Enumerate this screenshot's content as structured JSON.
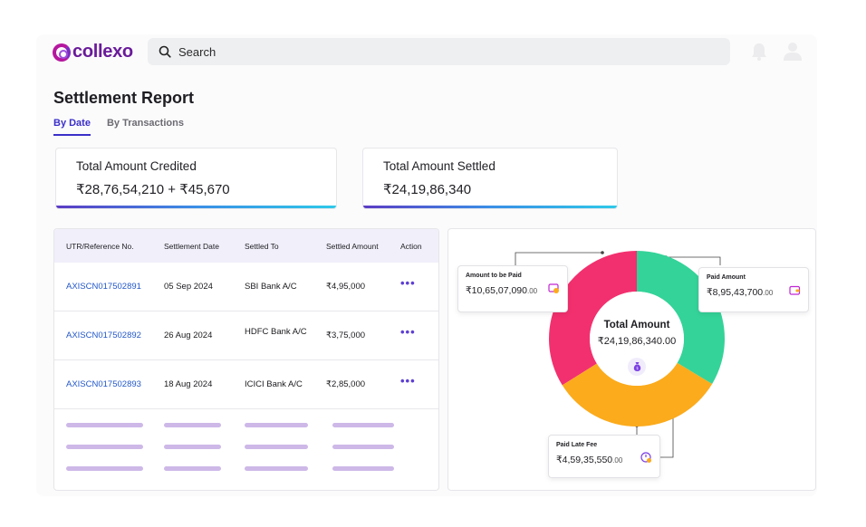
{
  "app": {
    "logo_text": "collexo"
  },
  "search": {
    "placeholder": "Search"
  },
  "header": {
    "icons": [
      "bell-icon",
      "user-icon"
    ]
  },
  "page": {
    "title": "Settlement Report"
  },
  "tabs": [
    {
      "label": "By Date",
      "active": true
    },
    {
      "label": "By Transactions",
      "active": false
    }
  ],
  "summary": {
    "credited": {
      "label": "Total Amount Credited",
      "value": "₹28,76,54,210 + ₹45,670"
    },
    "settled": {
      "label": "Total Amount Settled",
      "value": "₹24,19,86,340"
    }
  },
  "table": {
    "headers": [
      "UTR/Reference No.",
      "Settlement Date",
      "Settled To",
      "Settled Amount",
      "Action"
    ],
    "rows": [
      {
        "ref": "AXISCN017502891",
        "date": "05 Sep 2024",
        "to": "SBI Bank A/C",
        "amount": "₹4,95,000",
        "action": "•••"
      },
      {
        "ref": "AXISCN017502892",
        "date": "26 Aug 2024",
        "to": "HDFC Bank A/C",
        "amount": "₹3,75,000",
        "action": "•••"
      },
      {
        "ref": "AXISCN017502893",
        "date": "18 Aug 2024",
        "to": "ICICI Bank A/C",
        "amount": "₹2,85,000",
        "action": "•••"
      }
    ]
  },
  "chart": {
    "center_title": "Total Amount",
    "center_value": "₹24,19,86,340.00",
    "to_be_paid": {
      "label": "Amount to be Paid",
      "value": "₹10,65,07,090",
      "decimals": ".00"
    },
    "paid": {
      "label": "Paid Amount",
      "value": "₹8,95,43,700",
      "decimals": ".00"
    },
    "late_fee": {
      "label": "Paid Late Fee",
      "value": "₹4,59,35,550",
      "decimals": ".00"
    },
    "colors": {
      "to_be_paid": "#f2306f",
      "paid": "#34d399",
      "late_fee": "#fbab1c"
    }
  }
}
